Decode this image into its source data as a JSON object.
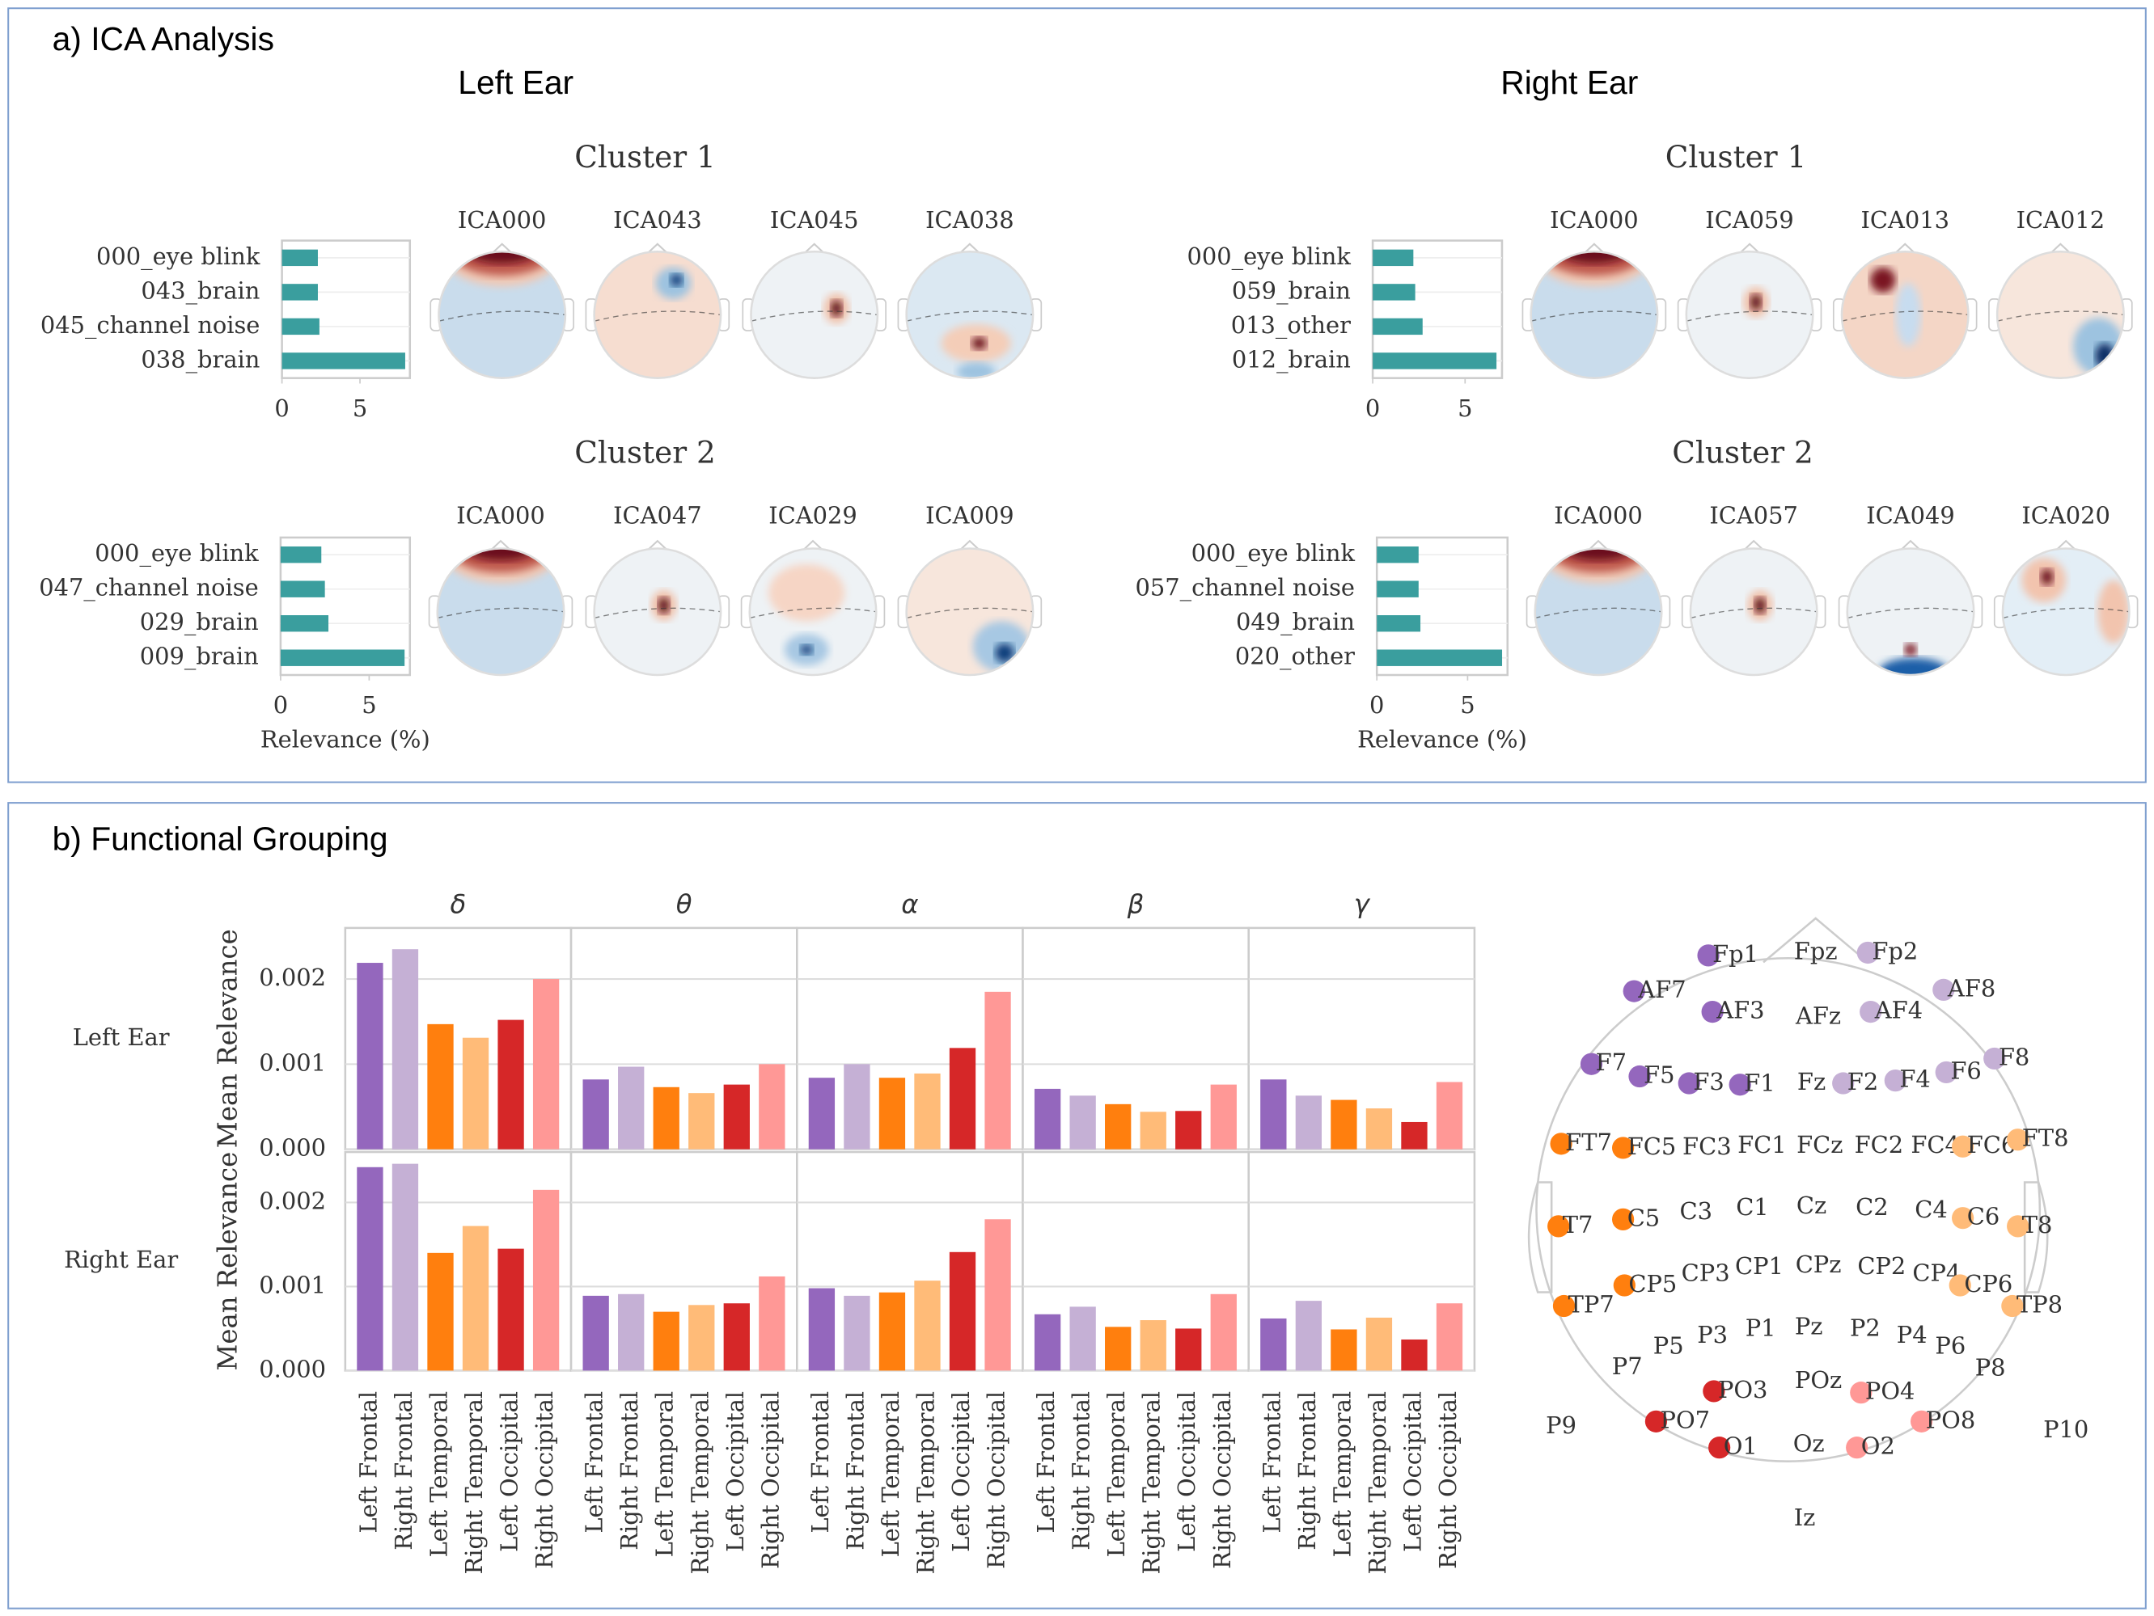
{
  "sections": [
    {
      "title": "a) ICA Analysis",
      "columns": [
        "Left Ear",
        "Right Ear"
      ]
    },
    {
      "title": "b) Functional Grouping"
    }
  ],
  "chart_data": [
    {
      "type": "hbar",
      "title": "Cluster 1",
      "categories": [
        "000_eye blink",
        "043_brain",
        "045_channel noise",
        "038_brain"
      ],
      "values": [
        2.3,
        2.3,
        2.4,
        7.9
      ],
      "color": "#3a9e9e",
      "xlim": [
        0,
        8.2
      ],
      "xticks": [
        0,
        5
      ],
      "topomaps": [
        "ICA000",
        "ICA043",
        "ICA045",
        "ICA038"
      ]
    },
    {
      "type": "hbar",
      "title": "Cluster 1",
      "categories": [
        "000_eye blink",
        "059_brain",
        "013_other",
        "012_brain"
      ],
      "values": [
        2.2,
        2.3,
        2.7,
        6.7
      ],
      "color": "#3a9e9e",
      "xlim": [
        0,
        7.0
      ],
      "xticks": [
        0,
        5
      ],
      "topomaps": [
        "ICA000",
        "ICA059",
        "ICA013",
        "ICA012"
      ]
    },
    {
      "type": "hbar",
      "title": "Cluster 2",
      "categories": [
        "000_eye blink",
        "047_channel noise",
        "029_brain",
        "009_brain"
      ],
      "values": [
        2.3,
        2.5,
        2.7,
        7.0
      ],
      "color": "#3a9e9e",
      "xlim": [
        0,
        7.3
      ],
      "xticks": [
        0,
        5
      ],
      "xlabel": "Relevance (%)",
      "topomaps": [
        "ICA000",
        "ICA047",
        "ICA029",
        "ICA009"
      ]
    },
    {
      "type": "hbar",
      "title": "Cluster 2",
      "categories": [
        "000_eye blink",
        "057_channel noise",
        "049_brain",
        "020_other"
      ],
      "values": [
        2.3,
        2.3,
        2.4,
        6.9
      ],
      "color": "#3a9e9e",
      "xlim": [
        0,
        7.2
      ],
      "xticks": [
        0,
        5
      ],
      "xlabel": "Relevance (%)",
      "topomaps": [
        "ICA000",
        "ICA057",
        "ICA049",
        "ICA020"
      ]
    },
    {
      "type": "bar_grid",
      "panels": [
        "δ",
        "θ",
        "α",
        "β",
        "γ"
      ],
      "categories": [
        "Left Frontal",
        "Right Frontal",
        "Left Temporal",
        "Right Temporal",
        "Left Occipital",
        "Right Occipital"
      ],
      "colors": [
        "#9467bd",
        "#c5b0d5",
        "#ff7f0e",
        "#ffbb78",
        "#d62728",
        "#ff9896"
      ],
      "ylabel": "Mean Relevance",
      "ylim": [
        0,
        0.0026
      ],
      "yticks": [
        {
          "value": 0,
          "label": "0.000"
        },
        {
          "value": 0.001,
          "label": "0.001"
        },
        {
          "value": 0.002,
          "label": "0.002"
        }
      ],
      "grid": true,
      "rows": [
        {
          "label": "Left Ear",
          "values": [
            [
              0.00219,
              0.00235,
              0.00147,
              0.00131,
              0.00152,
              0.002
            ],
            [
              0.00082,
              0.00097,
              0.00073,
              0.00066,
              0.00076,
              0.001
            ],
            [
              0.00084,
              0.001,
              0.00084,
              0.00089,
              0.00119,
              0.00185
            ],
            [
              0.00071,
              0.00063,
              0.00053,
              0.00044,
              0.00045,
              0.00076
            ],
            [
              0.00082,
              0.00063,
              0.00058,
              0.00048,
              0.00032,
              0.00079
            ]
          ]
        },
        {
          "label": "Right Ear",
          "values": [
            [
              0.00242,
              0.00246,
              0.0014,
              0.00172,
              0.00145,
              0.00215
            ],
            [
              0.00089,
              0.00091,
              0.0007,
              0.00078,
              0.0008,
              0.00112
            ],
            [
              0.00098,
              0.00089,
              0.00093,
              0.00107,
              0.00141,
              0.0018
            ],
            [
              0.00067,
              0.00076,
              0.00052,
              0.0006,
              0.0005,
              0.00091
            ],
            [
              0.00062,
              0.00083,
              0.00049,
              0.00063,
              0.00037,
              0.0008
            ]
          ]
        }
      ]
    }
  ],
  "montage": {
    "electrodes": [
      "Fp1",
      "Fpz",
      "Fp2",
      "AF7",
      "AF3",
      "AFz",
      "AF4",
      "AF8",
      "F7",
      "F5",
      "F3",
      "F1",
      "Fz",
      "F2",
      "F4",
      "F6",
      "F8",
      "FT7",
      "FC5",
      "FC3",
      "FC1",
      "FCz",
      "FC2",
      "FC4",
      "FC6",
      "FT8",
      "T7",
      "C5",
      "C3",
      "C1",
      "Cz",
      "C2",
      "C4",
      "C6",
      "T8",
      "TP7",
      "CP5",
      "CP3",
      "CP1",
      "CPz",
      "CP2",
      "CP4",
      "CP6",
      "TP8",
      "P7",
      "P5",
      "P3",
      "P1",
      "Pz",
      "P2",
      "P4",
      "P6",
      "P8",
      "P9",
      "PO7",
      "PO3",
      "POz",
      "PO4",
      "PO8",
      "P10",
      "O1",
      "Oz",
      "O2",
      "Iz"
    ]
  }
}
